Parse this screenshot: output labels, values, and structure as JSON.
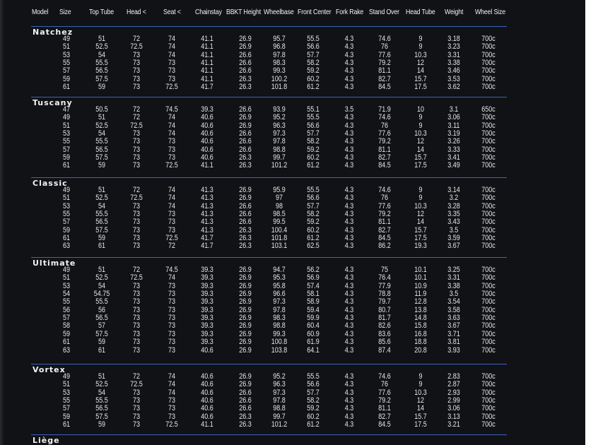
{
  "columns": [
    "Model",
    "Size",
    "Top Tube",
    "Head <",
    "Seat <",
    "Chainstay",
    "BBKT Height",
    "Wheelbase",
    "Front Center",
    "Fork Rake",
    "Stand Over",
    "Head Tube",
    "Weight",
    "Wheel Size"
  ],
  "models": [
    {
      "name": "Natchez",
      "rows": [
        [
          "49",
          "51",
          "72",
          "74",
          "41.1",
          "26.9",
          "95.7",
          "55.5",
          "4.3",
          "74.6",
          "9",
          "3.18",
          "700c"
        ],
        [
          "51",
          "52.5",
          "72.5",
          "74",
          "41.1",
          "26.9",
          "96.8",
          "56.6",
          "4.3",
          "76",
          "9",
          "3.23",
          "700c"
        ],
        [
          "53",
          "54",
          "73",
          "74",
          "41.1",
          "26.6",
          "97.8",
          "57.7",
          "4.3",
          "77.6",
          "10.3",
          "3.31",
          "700c"
        ],
        [
          "55",
          "55.5",
          "73",
          "73",
          "41.1",
          "26.6",
          "98.3",
          "58.2",
          "4.3",
          "79.2",
          "12",
          "3.38",
          "700c"
        ],
        [
          "57",
          "56.5",
          "73",
          "73",
          "41.1",
          "26.6",
          "99.3",
          "59.2",
          "4.3",
          "81.1",
          "14",
          "3.46",
          "700c"
        ],
        [
          "59",
          "57.5",
          "73",
          "73",
          "41.1",
          "26.3",
          "100.2",
          "60.2",
          "4.3",
          "82.7",
          "15.7",
          "3.53",
          "700c"
        ],
        [
          "61",
          "59",
          "73",
          "72.5",
          "41.7",
          "26.3",
          "101.8",
          "61.2",
          "4.3",
          "84.5",
          "17.5",
          "3.62",
          "700c"
        ]
      ]
    },
    {
      "name": "Tuscany",
      "rows": [
        [
          "47",
          "50.5",
          "72",
          "74.5",
          "39.3",
          "26.6",
          "93.9",
          "55.1",
          "3.5",
          "71.9",
          "10",
          "3.1",
          "650c"
        ],
        [
          "49",
          "51",
          "72",
          "74",
          "40.6",
          "26.9",
          "95.2",
          "55.5",
          "4.3",
          "74.6",
          "9",
          "3.06",
          "700c"
        ],
        [
          "51",
          "52.5",
          "72.5",
          "74",
          "40.6",
          "26.9",
          "96.3",
          "56.6",
          "4.3",
          "76",
          "9",
          "3.11",
          "700c"
        ],
        [
          "53",
          "54",
          "73",
          "74",
          "40.6",
          "26.6",
          "97.3",
          "57.7",
          "4.3",
          "77.6",
          "10.3",
          "3.19",
          "700c"
        ],
        [
          "55",
          "55.5",
          "73",
          "73",
          "40.6",
          "26.6",
          "97.8",
          "58.2",
          "4.3",
          "79.2",
          "12",
          "3.26",
          "700c"
        ],
        [
          "57",
          "56.5",
          "73",
          "73",
          "40.6",
          "26.6",
          "98.8",
          "59.2",
          "4.3",
          "81.1",
          "14",
          "3.33",
          "700c"
        ],
        [
          "59",
          "57.5",
          "73",
          "73",
          "40.6",
          "26.3",
          "99.7",
          "60.2",
          "4.3",
          "82.7",
          "15.7",
          "3.41",
          "700c"
        ],
        [
          "61",
          "59",
          "73",
          "72.5",
          "41.1",
          "26.3",
          "101.2",
          "61.2",
          "4.3",
          "84.5",
          "17.5",
          "3.49",
          "700c"
        ]
      ]
    },
    {
      "name": "Classic",
      "rows": [
        [
          "49",
          "51",
          "72",
          "74",
          "41.3",
          "26.9",
          "95.9",
          "55.5",
          "4.3",
          "74.6",
          "9",
          "3.14",
          "700c"
        ],
        [
          "51",
          "52.5",
          "72.5",
          "74",
          "41.3",
          "26.9",
          "97",
          "56.6",
          "4.3",
          "76",
          "9",
          "3.2",
          "700c"
        ],
        [
          "53",
          "54",
          "73",
          "74",
          "41.3",
          "26.6",
          "98",
          "57.7",
          "4.3",
          "77.6",
          "10.3",
          "3.28",
          "700c"
        ],
        [
          "55",
          "55.5",
          "73",
          "73",
          "41.3",
          "26.6",
          "98.5",
          "58.2",
          "4.3",
          "79.2",
          "12",
          "3.35",
          "700c"
        ],
        [
          "57",
          "56.5",
          "73",
          "73",
          "41.3",
          "26.6",
          "99.5",
          "59.2",
          "4.3",
          "81.1",
          "14",
          "3.43",
          "700c"
        ],
        [
          "59",
          "57.5",
          "73",
          "73",
          "41.3",
          "26.3",
          "100.4",
          "60.2",
          "4.3",
          "82.7",
          "15.7",
          "3.5",
          "700c"
        ],
        [
          "61",
          "59",
          "73",
          "72.5",
          "41.7",
          "26.3",
          "101.8",
          "61.2",
          "4.3",
          "84.5",
          "17.5",
          "3.59",
          "700c"
        ],
        [
          "63",
          "61",
          "73",
          "72",
          "41.7",
          "26.3",
          "103.1",
          "62.5",
          "4.3",
          "86.2",
          "19.3",
          "3.67",
          "700c"
        ]
      ]
    },
    {
      "name": "Ultimate",
      "rows": [
        [
          "49",
          "51",
          "72",
          "74.5",
          "39.3",
          "26.9",
          "94.7",
          "56.2",
          "4.3",
          "75",
          "10.1",
          "3.25",
          "700c"
        ],
        [
          "51",
          "52.5",
          "72.5",
          "74",
          "39.3",
          "26.9",
          "95.3",
          "56.9",
          "4.3",
          "76.4",
          "10.1",
          "3.31",
          "700c"
        ],
        [
          "53",
          "54",
          "73",
          "73",
          "39.3",
          "26.9",
          "95.8",
          "57.4",
          "4.3",
          "77.9",
          "10.9",
          "3.38",
          "700c"
        ],
        [
          "54",
          "54.75",
          "73",
          "73",
          "39.3",
          "26.9",
          "96.6",
          "58.1",
          "4.3",
          "78.8",
          "11.9",
          "3.5",
          "700c"
        ],
        [
          "55",
          "55.5",
          "73",
          "73",
          "39.3",
          "26.9",
          "97.3",
          "58.9",
          "4.3",
          "79.7",
          "12.8",
          "3.54",
          "700c"
        ],
        [
          "56",
          "56",
          "73",
          "73",
          "39.3",
          "26.9",
          "97.8",
          "59.4",
          "4.3",
          "80.7",
          "13.8",
          "3.58",
          "700c"
        ],
        [
          "57",
          "56.5",
          "73",
          "73",
          "39.3",
          "26.9",
          "98.3",
          "59.9",
          "4.3",
          "81.7",
          "14.8",
          "3.63",
          "700c"
        ],
        [
          "58",
          "57",
          "73",
          "73",
          "39.3",
          "26.9",
          "98.8",
          "60.4",
          "4.3",
          "82.6",
          "15.8",
          "3.67",
          "700c"
        ],
        [
          "59",
          "57.5",
          "73",
          "73",
          "39.3",
          "26.9",
          "99.3",
          "60.9",
          "4.3",
          "83.6",
          "16.8",
          "3.71",
          "700c"
        ],
        [
          "61",
          "59",
          "73",
          "73",
          "39.3",
          "26.9",
          "100.8",
          "61.9",
          "4.3",
          "85.6",
          "18.8",
          "3.81",
          "700c"
        ],
        [
          "63",
          "61",
          "73",
          "73",
          "40.6",
          "26.9",
          "103.8",
          "64.1",
          "4.3",
          "87.4",
          "20.8",
          "3.93",
          "700c"
        ]
      ]
    },
    {
      "name": "Vortex",
      "rows": [
        [
          "49",
          "51",
          "72",
          "74",
          "40.6",
          "26.9",
          "95.2",
          "55.5",
          "4.3",
          "74.6",
          "9",
          "2.83",
          "700c"
        ],
        [
          "51",
          "52.5",
          "72.5",
          "74",
          "40.6",
          "26.9",
          "96.3",
          "56.6",
          "4.3",
          "76",
          "9",
          "2.87",
          "700c"
        ],
        [
          "53",
          "54",
          "73",
          "74",
          "40.6",
          "26.6",
          "97.3",
          "57.7",
          "4.3",
          "77.6",
          "10.3",
          "2.93",
          "700c"
        ],
        [
          "55",
          "55.5",
          "73",
          "73",
          "40.6",
          "26.6",
          "97.8",
          "58.2",
          "4.3",
          "79.2",
          "12",
          "2.99",
          "700c"
        ],
        [
          "57",
          "56.5",
          "73",
          "73",
          "40.6",
          "26.6",
          "98.8",
          "59.2",
          "4.3",
          "81.1",
          "14",
          "3.06",
          "700c"
        ],
        [
          "59",
          "57.5",
          "73",
          "73",
          "40.6",
          "26.3",
          "99.7",
          "60.2",
          "4.3",
          "82.7",
          "15.7",
          "3.13",
          "700c"
        ],
        [
          "61",
          "59",
          "73",
          "72.5",
          "41.1",
          "26.3",
          "101.2",
          "61.2",
          "4.3",
          "84.5",
          "17.5",
          "3.21",
          "700c"
        ]
      ]
    },
    {
      "name": "Liège",
      "rows": []
    }
  ],
  "colors": {
    "background": "#101216",
    "text": "#e6e6e6",
    "rule": "#3f63b8"
  }
}
